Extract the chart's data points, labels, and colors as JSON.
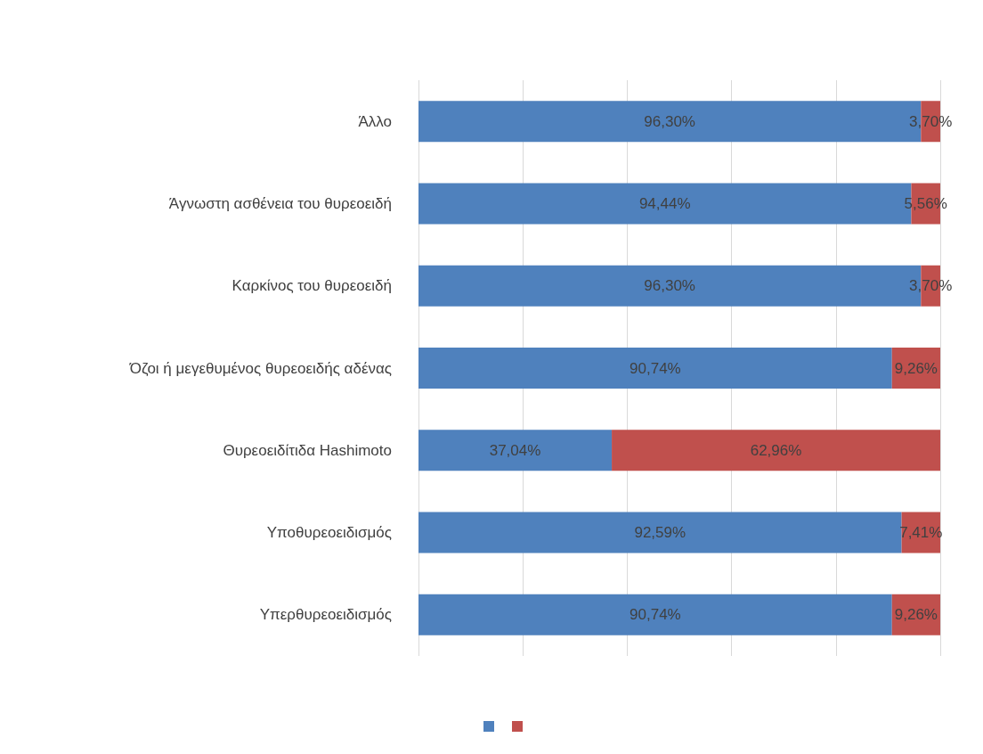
{
  "chart_data": {
    "type": "bar",
    "orientation": "horizontal",
    "stacked": true,
    "categories": [
      "Άλλο",
      "Άγνωστη ασθένεια του θυρεοειδή",
      "Καρκίνος του θυρεοειδή",
      "Όζοι ή μεγεθυμένος θυρεοειδής αδένας",
      "Θυρεοειδίτιδα Hashimoto",
      "Υποθυρεοειδισμός",
      "Υπερθυρεοειδισμός"
    ],
    "series": [
      {
        "color": "#4f81bd",
        "values": [
          96.3,
          94.44,
          96.3,
          90.74,
          37.04,
          92.59,
          90.74
        ],
        "value_labels": [
          "96,30%",
          "94,44%",
          "96,30%",
          "90,74%",
          "37,04%",
          "92,59%",
          "90,74%"
        ]
      },
      {
        "color": "#c0504d",
        "values": [
          3.7,
          5.56,
          3.7,
          9.26,
          62.96,
          7.41,
          9.26
        ],
        "value_labels": [
          "3,70%",
          "5,56%",
          "3,70%",
          "9,26%",
          "62,96%",
          "7,41%",
          "9,26%"
        ]
      }
    ],
    "xlim": [
      0,
      100
    ],
    "xticks": [
      {
        "value": 0,
        "label": null
      },
      {
        "value": 20,
        "label": null
      },
      {
        "value": 40,
        "label": null
      },
      {
        "value": 60,
        "label": null
      },
      {
        "value": 80,
        "label": null
      },
      {
        "value": 100,
        "label": null
      }
    ],
    "grid": "x",
    "tick_labels": "y"
  }
}
